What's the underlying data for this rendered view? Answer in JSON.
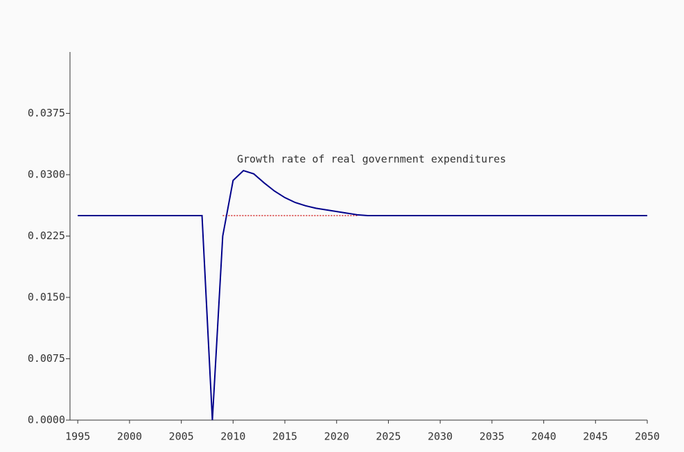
{
  "chart_data": {
    "type": "line",
    "annotation": "Growth rate of real government expenditures",
    "x": [
      1995,
      1996,
      1997,
      1998,
      1999,
      2000,
      2001,
      2002,
      2003,
      2004,
      2005,
      2006,
      2007,
      2008,
      2009,
      2010,
      2011,
      2012,
      2013,
      2014,
      2015,
      2016,
      2017,
      2018,
      2019,
      2020,
      2021,
      2022,
      2023,
      2024,
      2025,
      2026,
      2027,
      2028,
      2029,
      2030,
      2031,
      2032,
      2033,
      2034,
      2035,
      2036,
      2037,
      2038,
      2039,
      2040,
      2041,
      2042,
      2043,
      2044,
      2045,
      2046,
      2047,
      2048,
      2049,
      2050
    ],
    "series": [
      {
        "color": "#00008b",
        "style": "solid",
        "values": [
          0.025,
          0.025,
          0.025,
          0.025,
          0.025,
          0.025,
          0.025,
          0.025,
          0.025,
          0.025,
          0.025,
          0.025,
          0.025,
          0.0,
          0.0225,
          0.0293,
          0.0305,
          0.0301,
          0.029,
          0.028,
          0.0272,
          0.0266,
          0.0262,
          0.0259,
          0.0257,
          0.0255,
          0.0253,
          0.0251,
          0.025,
          0.025,
          0.025,
          0.025,
          0.025,
          0.025,
          0.025,
          0.025,
          0.025,
          0.025,
          0.025,
          0.025,
          0.025,
          0.025,
          0.025,
          0.025,
          0.025,
          0.025,
          0.025,
          0.025,
          0.025,
          0.025,
          0.025,
          0.025,
          0.025,
          0.025,
          0.025,
          0.025
        ]
      },
      {
        "color": "#cc0000",
        "style": "dotted",
        "values": [
          null,
          null,
          null,
          null,
          null,
          null,
          null,
          null,
          null,
          null,
          null,
          null,
          null,
          null,
          0.025,
          0.025,
          0.025,
          0.025,
          0.025,
          0.025,
          0.025,
          0.025,
          0.025,
          0.025,
          0.025,
          0.025,
          0.025,
          0.025,
          null,
          null,
          null,
          null,
          null,
          null,
          null,
          null,
          null,
          null,
          null,
          null,
          null,
          null,
          null,
          null,
          null,
          null,
          null,
          null,
          null,
          null,
          null,
          null,
          null,
          null,
          null,
          null
        ]
      }
    ],
    "xlim": [
      1994.25,
      2050
    ],
    "xticks": [
      1995,
      2000,
      2005,
      2010,
      2015,
      2020,
      2025,
      2030,
      2035,
      2040,
      2045,
      2050
    ],
    "ylim": [
      0,
      0.045
    ],
    "yticks": [
      {
        "value": 0,
        "label": "0.0000"
      },
      {
        "value": 0.0075,
        "label": "0.0075"
      },
      {
        "value": 0.015,
        "label": "0.0150"
      },
      {
        "value": 0.0225,
        "label": "0.0225"
      },
      {
        "value": 0.03,
        "label": "0.0300"
      },
      {
        "value": 0.0375,
        "label": "0.0375"
      }
    ],
    "grid": false
  }
}
